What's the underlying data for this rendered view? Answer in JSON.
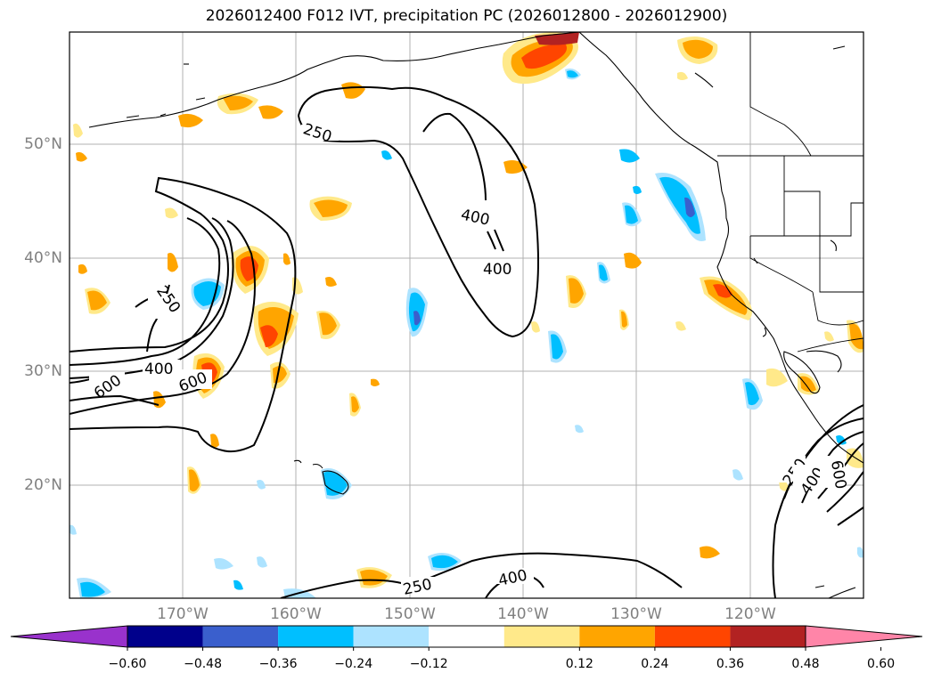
{
  "title": "2026012400 F012 IVT, precipitation PC (2026012800 - 2026012900)",
  "lat_labels": [
    "50°N",
    "40°N",
    "30°N",
    "20°N"
  ],
  "lon_labels": [
    "170°W",
    "160°W",
    "150°W",
    "140°W",
    "130°W",
    "120°W"
  ],
  "contour_labels": {
    "c250_a": "250",
    "c400_a": "400",
    "c400_b": "400",
    "c250_b": "250",
    "c400_c": "400",
    "c600_a": "600",
    "c600_b": "600",
    "c250_c": "250",
    "c400_d": "400",
    "c250_d": "250",
    "c400_e": "400",
    "c600_c": "600"
  },
  "colorbar": {
    "colors": [
      "#9932CC",
      "#00008B",
      "#3A5FCD",
      "#00BFFF",
      "#ADE3FF",
      "#FFFFFF",
      "#FFE98A",
      "#FFA500",
      "#FF4500",
      "#B22222",
      "#FF85A8"
    ],
    "ticks": [
      "−0.60",
      "−0.48",
      "−0.36",
      "−0.24",
      "−0.12",
      "0.12",
      "0.24",
      "0.36",
      "0.48",
      "0.60"
    ]
  },
  "icon": "world-map"
}
